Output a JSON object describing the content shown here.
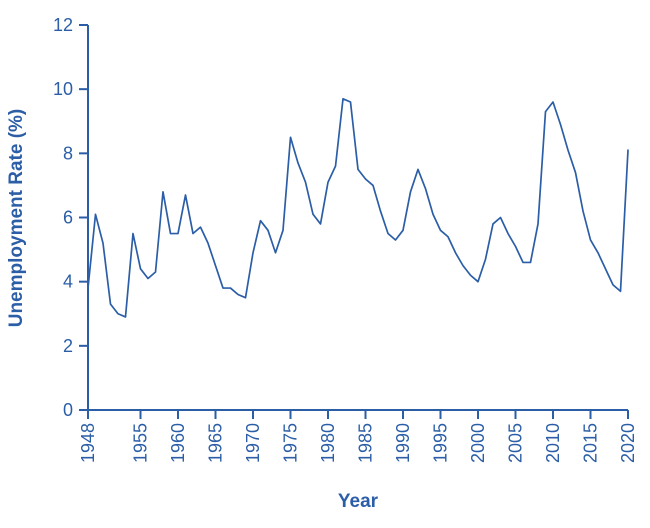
{
  "colors": {
    "accent": "#2b5ea6",
    "line": "#2b5ea6"
  },
  "chart_data": {
    "type": "line",
    "title": "",
    "xlabel": "Year",
    "ylabel": "Unemployment Rate (%)",
    "xlim": [
      1948,
      2020
    ],
    "ylim": [
      0,
      12
    ],
    "grid": false,
    "legend": "none",
    "x_ticks": [
      1948,
      1955,
      1960,
      1965,
      1970,
      1975,
      1980,
      1985,
      1990,
      1995,
      2000,
      2005,
      2010,
      2015,
      2020
    ],
    "y_ticks": [
      0,
      2,
      4,
      6,
      8,
      10,
      12
    ],
    "series": [
      {
        "name": "Unemployment Rate (%)",
        "x_start": 1948,
        "x_step": 1,
        "values": [
          3.8,
          6.1,
          5.2,
          3.3,
          3.0,
          2.9,
          5.5,
          4.4,
          4.1,
          4.3,
          6.8,
          5.5,
          5.5,
          6.7,
          5.5,
          5.7,
          5.2,
          4.5,
          3.8,
          3.8,
          3.6,
          3.5,
          4.9,
          5.9,
          5.6,
          4.9,
          5.6,
          8.5,
          7.7,
          7.1,
          6.1,
          5.8,
          7.1,
          7.6,
          9.7,
          9.6,
          7.5,
          7.2,
          7.0,
          6.2,
          5.5,
          5.3,
          5.6,
          6.8,
          7.5,
          6.9,
          6.1,
          5.6,
          5.4,
          4.9,
          4.5,
          4.2,
          4.0,
          4.7,
          5.8,
          6.0,
          5.5,
          5.1,
          4.6,
          4.6,
          5.8,
          9.3,
          9.6,
          8.9,
          8.1,
          7.4,
          6.2,
          5.3,
          4.9,
          4.4,
          3.9,
          3.7,
          8.1
        ]
      }
    ]
  }
}
